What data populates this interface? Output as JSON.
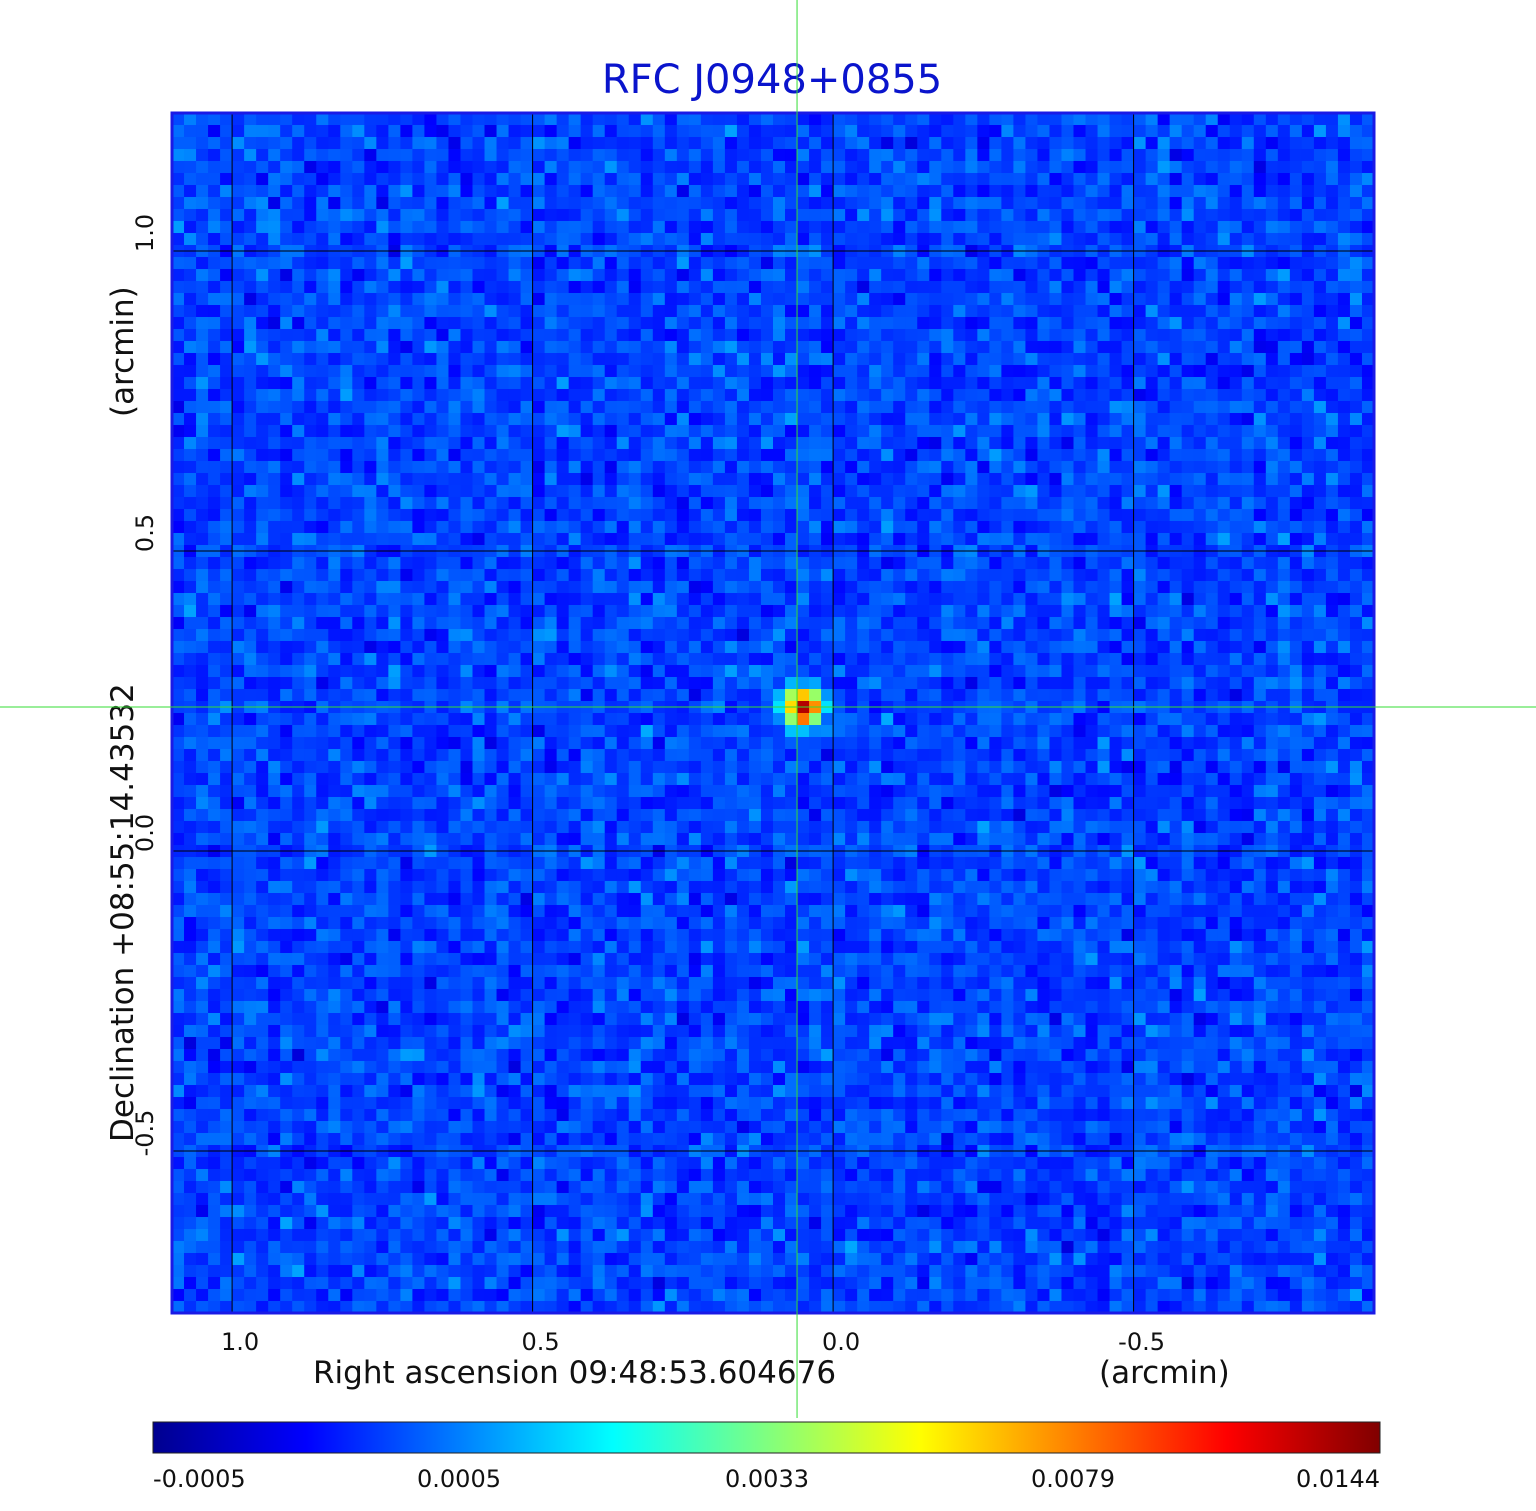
{
  "chart_data": {
    "type": "heatmap",
    "title": "RFC J0948+0855",
    "xlabel": "Right ascension  09:48:53.604676",
    "xunit": "(arcmin)",
    "ylabel": "Declination  +08:55:14.43532",
    "yunit": "(arcmin)",
    "xlim": [
      1.1,
      -0.9
    ],
    "ylim": [
      -0.77,
      1.23
    ],
    "x_ticks": [
      1.0,
      0.5,
      0.0,
      -0.5
    ],
    "x_tick_labels": [
      "1.0",
      "0.5",
      "0.0",
      "-0.5"
    ],
    "y_ticks": [
      -0.5,
      0.0,
      0.5,
      1.0
    ],
    "y_tick_labels": [
      "-0.5",
      "0.0",
      "0.5",
      "1.0"
    ],
    "grid": true,
    "crosshair": {
      "x": 0.06,
      "y": 0.24
    },
    "source": {
      "x": 0.05,
      "y": 0.24,
      "peak": 0.0144
    },
    "colorbar": {
      "ticks": [
        "-0.0005",
        "0.0005",
        "0.0033",
        "0.0079",
        "0.0144"
      ],
      "colormap": "jet"
    }
  },
  "colors": {
    "title": "#0a14cc",
    "frame": "#1a1ae6",
    "grid": "#000000",
    "crosshair": "#33dd33"
  }
}
